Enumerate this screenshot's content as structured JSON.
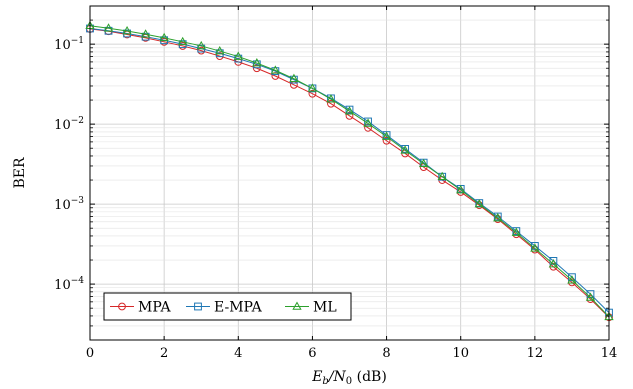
{
  "chart_data": {
    "type": "line",
    "xlabel": {
      "main": "E",
      "sub1": "b",
      "mid": "/N",
      "sub2": "0",
      "unit": " (dB)"
    },
    "ylabel": "BER",
    "xlim": [
      0,
      14
    ],
    "ylim": [
      2e-05,
      0.3
    ],
    "yscale": "log",
    "grid": true,
    "legend_position": "bottom-left",
    "x_ticks": [
      0,
      2,
      4,
      6,
      8,
      10,
      12,
      14
    ],
    "y_ticks": [
      {
        "value": 0.0001,
        "base": "10",
        "exp": "−4"
      },
      {
        "value": 0.001,
        "base": "10",
        "exp": "−3"
      },
      {
        "value": 0.01,
        "base": "10",
        "exp": "−2"
      },
      {
        "value": 0.1,
        "base": "10",
        "exp": "−1"
      }
    ],
    "x": [
      0,
      0.5,
      1,
      1.5,
      2,
      2.5,
      3,
      3.5,
      4,
      4.5,
      5,
      5.5,
      6,
      6.5,
      7,
      7.5,
      8,
      8.5,
      9,
      9.5,
      10,
      10.5,
      11,
      11.5,
      12,
      12.5,
      13,
      13.5,
      14
    ],
    "series": [
      {
        "name": "MPA",
        "color": "#d62728",
        "marker": "circle",
        "values": [
          0.155,
          0.145,
          0.132,
          0.12,
          0.107,
          0.095,
          0.083,
          0.071,
          0.06,
          0.05,
          0.04,
          0.031,
          0.024,
          0.018,
          0.0127,
          0.009,
          0.0062,
          0.0043,
          0.0029,
          0.002,
          0.00142,
          0.00097,
          0.00065,
          0.00042,
          0.00027,
          0.000165,
          0.000105,
          6.5e-05,
          3.85e-05
        ]
      },
      {
        "name": "E-MPA",
        "color": "#1f77b4",
        "marker": "square",
        "values": [
          0.157,
          0.147,
          0.136,
          0.124,
          0.112,
          0.1,
          0.088,
          0.077,
          0.066,
          0.056,
          0.046,
          0.036,
          0.028,
          0.021,
          0.0152,
          0.0108,
          0.0073,
          0.0049,
          0.0033,
          0.0022,
          0.00155,
          0.00103,
          0.0007,
          0.00046,
          0.0003,
          0.000195,
          0.000122,
          7.5e-05,
          4.4e-05
        ]
      },
      {
        "name": "ML",
        "color": "#2ca02c",
        "marker": "triangle",
        "values": [
          0.17,
          0.158,
          0.146,
          0.133,
          0.12,
          0.107,
          0.095,
          0.082,
          0.07,
          0.058,
          0.047,
          0.037,
          0.028,
          0.0205,
          0.0145,
          0.0102,
          0.007,
          0.0047,
          0.0032,
          0.0022,
          0.0015,
          0.001,
          0.00067,
          0.00044,
          0.00028,
          0.000178,
          0.000112,
          6.8e-05,
          3.9e-05
        ]
      }
    ]
  }
}
